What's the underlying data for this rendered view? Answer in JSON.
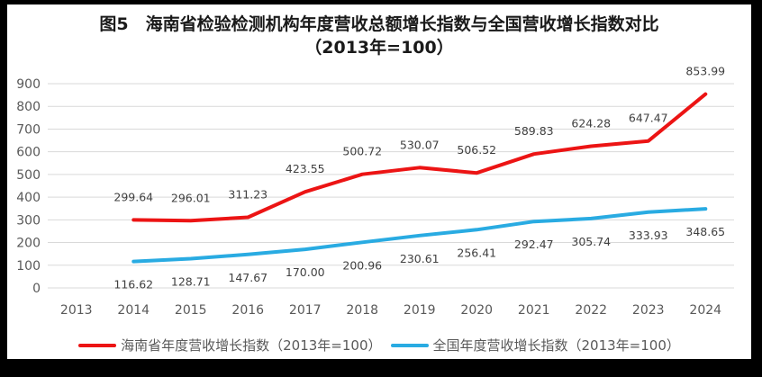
{
  "chart_data": {
    "type": "line",
    "title": "图5　海南省检验检测机构年度营收总额增长指数与全国营收增长指数对比",
    "subtitle": "（2013年=100）",
    "categories": [
      "2013",
      "2014",
      "2015",
      "2016",
      "2017",
      "2018",
      "2019",
      "2020",
      "2021",
      "2022",
      "2023",
      "2024"
    ],
    "ylim": [
      0,
      900
    ],
    "ytick_step": 100,
    "grid": true,
    "legend_position": "bottom",
    "colors": {
      "grid": "#d9d9d9",
      "axis_text": "#595959",
      "data_label": "#404040",
      "title_text": "#1a1a1a",
      "canvas_background": "#ffffff",
      "frame": "#000000"
    },
    "series": [
      {
        "name": "海南省年度营收增长指数（2013年=100）",
        "color": "#ec1414",
        "label_position": "above",
        "start_index": 1,
        "values": [
          299.64,
          296.01,
          311.23,
          423.55,
          500.72,
          530.07,
          506.52,
          589.83,
          624.28,
          647.47,
          853.99
        ]
      },
      {
        "name": "全国年度营收增长指数（2013年=100）",
        "color": "#29abe2",
        "label_position": "below",
        "start_index": 1,
        "values": [
          116.62,
          128.71,
          147.67,
          170.0,
          200.96,
          230.61,
          256.41,
          292.47,
          305.74,
          333.93,
          348.65
        ]
      }
    ]
  }
}
